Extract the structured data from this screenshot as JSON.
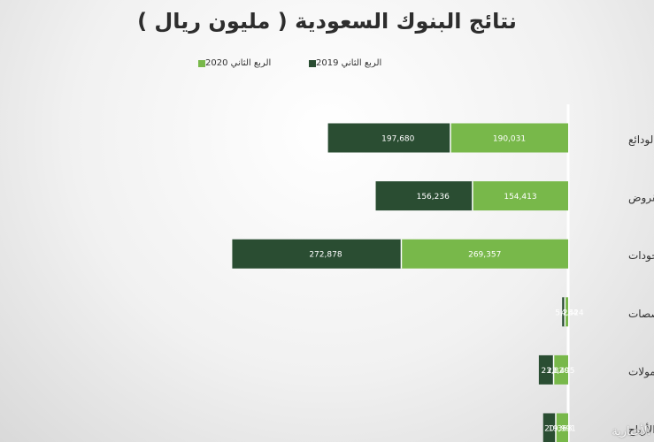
{
  "chart_data": {
    "type": "bar",
    "orientation": "horizontal",
    "stacked": true,
    "title": "نتائج البنوك السعودية ( مليون ريال )",
    "categories": [
      "الودائع",
      "القروض",
      "الموجودات",
      "المخصصات",
      "دخل العمولات",
      "صافي الأرباح"
    ],
    "series": [
      {
        "name": "الربع الثاني 2019",
        "values": [
          197680,
          156236,
          272878,
          4424,
          23820,
          20368
        ],
        "color": "#2a4d32"
      },
      {
        "name": "الربع الثاني 2020",
        "values": [
          190031,
          154413,
          269357,
          5264,
          23495,
          19991
        ],
        "color": "#78b84a"
      }
    ],
    "data_labels": [
      [
        "197,680",
        "156,236",
        "272,878",
        "4,424",
        "23,820",
        "20,368"
      ],
      [
        "190,031",
        "154,413",
        "269,357",
        "5,264",
        "23,495",
        "19,991"
      ]
    ],
    "legend_position": "top-center",
    "grid": false
  },
  "watermark": "الأخبارية"
}
